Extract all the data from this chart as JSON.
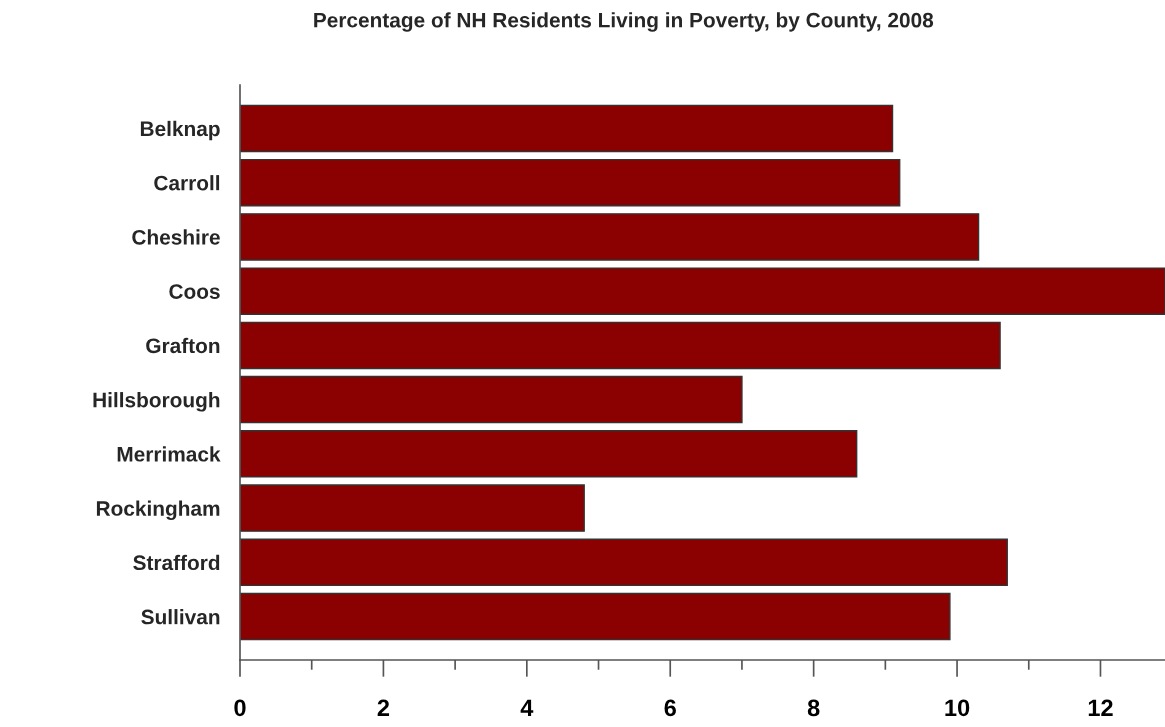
{
  "chart_data": {
    "type": "bar",
    "orientation": "horizontal",
    "title": "Percentage of NH Residents Living in Poverty, by County, 2008",
    "categories": [
      "Belknap",
      "Carroll",
      "Cheshire",
      "Coos",
      "Grafton",
      "Hillsborough",
      "Merrimack",
      "Rockingham",
      "Strafford",
      "Sullivan"
    ],
    "values": [
      9.1,
      9.2,
      10.3,
      12.9,
      10.6,
      7.0,
      8.6,
      4.8,
      10.7,
      9.9
    ],
    "color": "#8b0000",
    "xlim": [
      0,
      12.9
    ],
    "xticks": [
      0,
      {
        "value": 1,
        "label": null
      },
      2,
      {
        "value": 3,
        "label": null
      },
      4,
      {
        "value": 5,
        "label": null
      },
      6,
      {
        "value": 7,
        "label": null
      },
      8,
      {
        "value": 9,
        "label": null
      },
      10,
      {
        "value": 11,
        "label": null
      },
      12
    ],
    "grid": false,
    "legend": false
  }
}
